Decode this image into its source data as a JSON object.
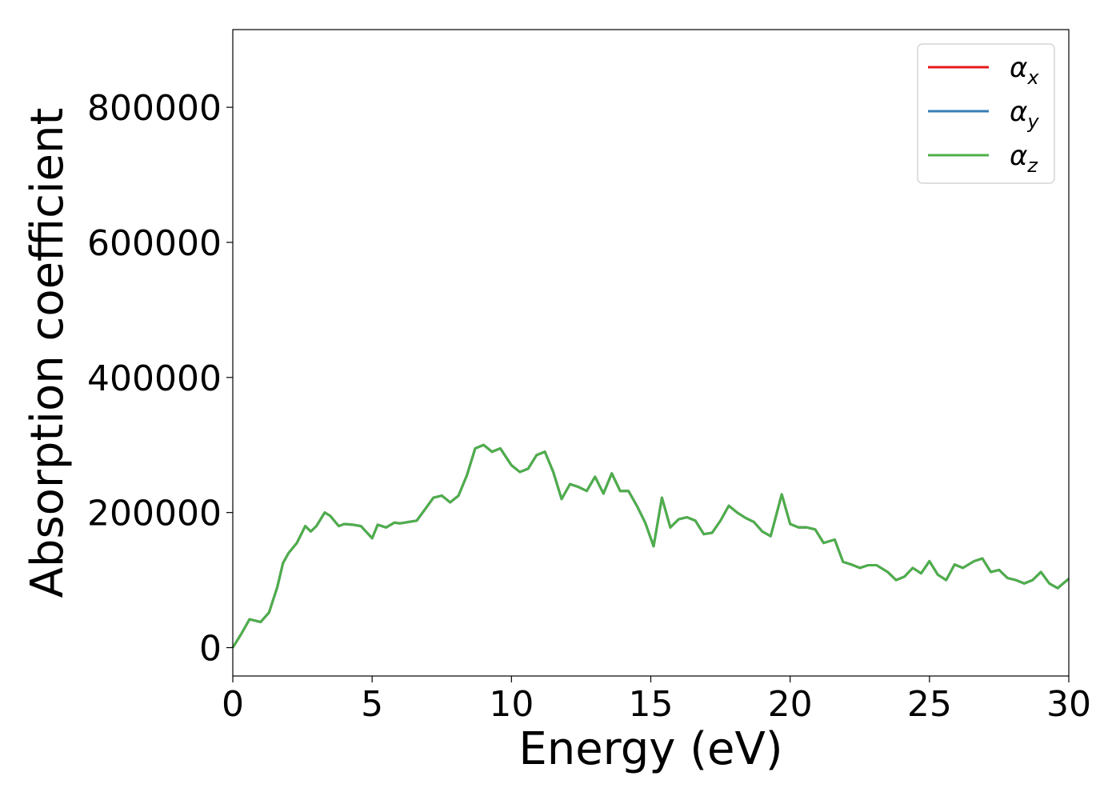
{
  "chart_data": {
    "type": "line",
    "xlabel": "Energy (eV)",
    "ylabel": "Absorption coefficient",
    "xlim": [
      0,
      30
    ],
    "ylim": [
      -42000,
      915000
    ],
    "xticks": [
      0,
      5,
      10,
      15,
      20,
      25,
      30
    ],
    "yticks": [
      0,
      200000,
      400000,
      600000,
      800000
    ],
    "grid": false,
    "legend_position": "top-right",
    "x": [
      0,
      0.3,
      0.6,
      0.8,
      1.0,
      1.3,
      1.6,
      1.8,
      2.0,
      2.3,
      2.6,
      2.8,
      3.0,
      3.3,
      3.5,
      3.8,
      4.0,
      4.3,
      4.6,
      5.0,
      5.2,
      5.5,
      5.8,
      6.0,
      6.3,
      6.6,
      6.9,
      7.2,
      7.5,
      7.8,
      8.1,
      8.4,
      8.7,
      9.0,
      9.3,
      9.6,
      10.0,
      10.3,
      10.6,
      10.9,
      11.2,
      11.5,
      11.8,
      12.1,
      12.4,
      12.7,
      13.0,
      13.3,
      13.6,
      13.9,
      14.2,
      14.5,
      14.8,
      15.1,
      15.4,
      15.7,
      16.0,
      16.3,
      16.6,
      16.9,
      17.2,
      17.5,
      17.8,
      18.1,
      18.4,
      18.7,
      19.0,
      19.3,
      19.7,
      20.0,
      20.3,
      20.6,
      20.9,
      21.2,
      21.6,
      21.9,
      22.2,
      22.5,
      22.8,
      23.1,
      23.5,
      23.8,
      24.1,
      24.4,
      24.7,
      25.0,
      25.3,
      25.6,
      25.9,
      26.2,
      26.6,
      26.9,
      27.2,
      27.5,
      27.8,
      28.1,
      28.4,
      28.7,
      29.0,
      29.3,
      29.6,
      30.0
    ],
    "series": [
      {
        "name": "α_x",
        "color": "#e41a1c",
        "values": [
          0,
          20000,
          42000,
          40000,
          38000,
          52000,
          90000,
          125000,
          140000,
          155000,
          180000,
          172000,
          180000,
          200000,
          195000,
          180000,
          183000,
          182000,
          180000,
          162000,
          182000,
          178000,
          185000,
          184000,
          186000,
          188000,
          205000,
          222000,
          225000,
          215000,
          225000,
          255000,
          295000,
          300000,
          290000,
          295000,
          270000,
          260000,
          265000,
          285000,
          290000,
          260000,
          220000,
          242000,
          238000,
          232000,
          253000,
          228000,
          258000,
          232000,
          232000,
          210000,
          185000,
          150000,
          222000,
          178000,
          190000,
          193000,
          188000,
          168000,
          170000,
          188000,
          210000,
          200000,
          192000,
          186000,
          172000,
          165000,
          227000,
          183000,
          178000,
          178000,
          175000,
          155000,
          160000,
          127000,
          123000,
          118000,
          122000,
          122000,
          112000,
          100000,
          105000,
          118000,
          110000,
          128000,
          108000,
          100000,
          123000,
          118000,
          128000,
          132000,
          112000,
          115000,
          103000,
          100000,
          95000,
          100000,
          112000,
          95000,
          88000,
          102000
        ]
      },
      {
        "name": "α_y",
        "color": "#377eb8",
        "values": [
          0,
          20000,
          42000,
          40000,
          38000,
          52000,
          90000,
          125000,
          140000,
          155000,
          180000,
          172000,
          180000,
          200000,
          195000,
          180000,
          183000,
          182000,
          180000,
          162000,
          182000,
          178000,
          185000,
          184000,
          186000,
          188000,
          205000,
          222000,
          225000,
          215000,
          225000,
          255000,
          295000,
          300000,
          290000,
          295000,
          270000,
          260000,
          265000,
          285000,
          290000,
          260000,
          220000,
          242000,
          238000,
          232000,
          253000,
          228000,
          258000,
          232000,
          232000,
          210000,
          185000,
          150000,
          222000,
          178000,
          190000,
          193000,
          188000,
          168000,
          170000,
          188000,
          210000,
          200000,
          192000,
          186000,
          172000,
          165000,
          227000,
          183000,
          178000,
          178000,
          175000,
          155000,
          160000,
          127000,
          123000,
          118000,
          122000,
          122000,
          112000,
          100000,
          105000,
          118000,
          110000,
          128000,
          108000,
          100000,
          123000,
          118000,
          128000,
          132000,
          112000,
          115000,
          103000,
          100000,
          95000,
          100000,
          112000,
          95000,
          88000,
          102000
        ]
      },
      {
        "name": "α_z",
        "color": "#4daf4a",
        "values": [
          0,
          20000,
          42000,
          40000,
          38000,
          52000,
          90000,
          125000,
          140000,
          155000,
          180000,
          172000,
          180000,
          200000,
          195000,
          180000,
          183000,
          182000,
          180000,
          162000,
          182000,
          178000,
          185000,
          184000,
          186000,
          188000,
          205000,
          222000,
          225000,
          215000,
          225000,
          255000,
          295000,
          300000,
          290000,
          295000,
          270000,
          260000,
          265000,
          285000,
          290000,
          260000,
          220000,
          242000,
          238000,
          232000,
          253000,
          228000,
          258000,
          232000,
          232000,
          210000,
          185000,
          150000,
          222000,
          178000,
          190000,
          193000,
          188000,
          168000,
          170000,
          188000,
          210000,
          200000,
          192000,
          186000,
          172000,
          165000,
          227000,
          183000,
          178000,
          178000,
          175000,
          155000,
          160000,
          127000,
          123000,
          118000,
          122000,
          122000,
          112000,
          100000,
          105000,
          118000,
          110000,
          128000,
          108000,
          100000,
          123000,
          118000,
          128000,
          132000,
          112000,
          115000,
          103000,
          100000,
          95000,
          100000,
          112000,
          95000,
          88000,
          102000
        ]
      }
    ],
    "legend": [
      {
        "base": "α",
        "sub": "x",
        "color": "#e41a1c"
      },
      {
        "base": "α",
        "sub": "y",
        "color": "#377eb8"
      },
      {
        "base": "α",
        "sub": "z",
        "color": "#4daf4a"
      }
    ]
  }
}
